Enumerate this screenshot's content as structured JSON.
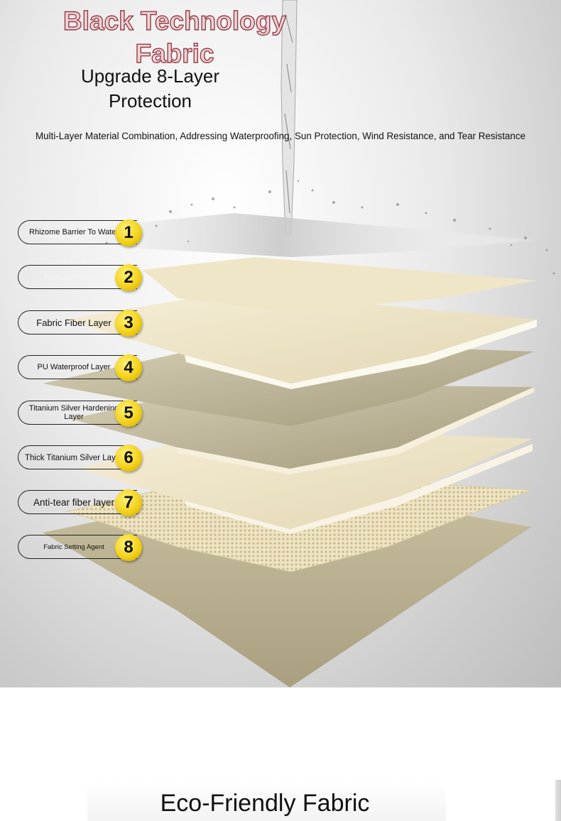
{
  "hero": {
    "title_line1": "Black Technology",
    "title_line2": "Fabric",
    "subtitle": "Upgrade 8-Layer Protection",
    "tagline": "Multi-Layer Material Combination, Addressing Waterproofing, Sun Protection, Wind Resistance, and Tear Resistance"
  },
  "layers": [
    {
      "number": "1",
      "label": "Rhizome Barrier To Water"
    },
    {
      "number": "2",
      "label": "Fabric Dyeing Layer"
    },
    {
      "number": "3",
      "label": "Fabric Fiber Layer"
    },
    {
      "number": "4",
      "label": "PU Waterproof Layer"
    },
    {
      "number": "5",
      "label": "Titanium Silver Hardening Layer"
    },
    {
      "number": "6",
      "label": "Thick Titanium Silver Layer"
    },
    {
      "number": "7",
      "label": "Anti-tear fiber layer"
    },
    {
      "number": "8",
      "label": "Fabric Setting Agent"
    }
  ],
  "section": {
    "title": "Eco-Friendly Fabric"
  },
  "colors": {
    "badge": "#f4d21a",
    "title_outline": "#9c3a44",
    "fabric_cream": "#efe6cc",
    "fabric_khaki": "#b8ae8e"
  }
}
